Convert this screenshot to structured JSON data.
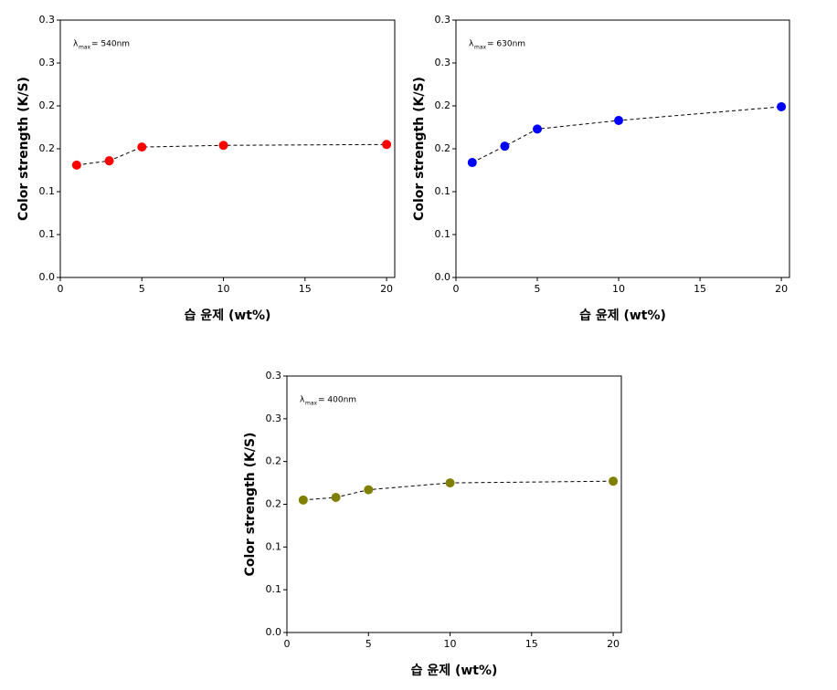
{
  "chart_data": [
    {
      "type": "line",
      "x": [
        1,
        3,
        5,
        10,
        20
      ],
      "values": [
        0.131,
        0.136,
        0.152,
        0.154,
        0.155
      ],
      "color": "#ff0000",
      "xlim": [
        0,
        20.5
      ],
      "xticks": [
        0,
        5,
        10,
        15,
        20
      ],
      "ylim": [
        0,
        0.3
      ],
      "yticks": [
        {
          "value": 0,
          "label": "0.0"
        },
        {
          "value": 0.05,
          "label": "0.1"
        },
        {
          "value": 0.1,
          "label": "0.1"
        },
        {
          "value": 0.15,
          "label": "0.2"
        },
        {
          "value": 0.2,
          "label": "0.2"
        },
        {
          "value": 0.25,
          "label": "0.3"
        },
        {
          "value": 0.3,
          "label": "0.3"
        }
      ],
      "x_label": "습 윤제 (wt%)",
      "y_label": "Color strength (K/S)",
      "annotation": {
        "symbol": "λ",
        "subscript": "max",
        "text": "= 540nm"
      }
    },
    {
      "type": "line",
      "x": [
        1,
        3,
        5,
        10,
        20
      ],
      "values": [
        0.134,
        0.153,
        0.173,
        0.183,
        0.199
      ],
      "color": "#0000ff",
      "xlim": [
        0,
        20.5
      ],
      "xticks": [
        0,
        5,
        10,
        15,
        20
      ],
      "ylim": [
        0,
        0.3
      ],
      "yticks": [
        {
          "value": 0,
          "label": "0.0"
        },
        {
          "value": 0.05,
          "label": "0.1"
        },
        {
          "value": 0.1,
          "label": "0.1"
        },
        {
          "value": 0.15,
          "label": "0.2"
        },
        {
          "value": 0.2,
          "label": "0.2"
        },
        {
          "value": 0.25,
          "label": "0.3"
        },
        {
          "value": 0.3,
          "label": "0.3"
        }
      ],
      "x_label": "습 윤제 (wt%)",
      "y_label": "Color strength (K/S)",
      "annotation": {
        "symbol": "λ",
        "subscript": "max",
        "text": "= 630nm"
      }
    },
    {
      "type": "line",
      "x": [
        1,
        3,
        5,
        10,
        20
      ],
      "values": [
        0.155,
        0.158,
        0.167,
        0.175,
        0.177
      ],
      "color": "#808000",
      "xlim": [
        0,
        20.5
      ],
      "xticks": [
        0,
        5,
        10,
        15,
        20
      ],
      "ylim": [
        0,
        0.3
      ],
      "yticks": [
        {
          "value": 0,
          "label": "0.0"
        },
        {
          "value": 0.05,
          "label": "0.1"
        },
        {
          "value": 0.1,
          "label": "0.1"
        },
        {
          "value": 0.15,
          "label": "0.2"
        },
        {
          "value": 0.2,
          "label": "0.2"
        },
        {
          "value": 0.25,
          "label": "0.3"
        },
        {
          "value": 0.3,
          "label": "0.3"
        }
      ],
      "x_label": "습 윤제 (wt%)",
      "y_label": "Color strength (K/S)",
      "annotation": {
        "symbol": "λ",
        "subscript": "max",
        "text": "= 400nm"
      }
    }
  ]
}
